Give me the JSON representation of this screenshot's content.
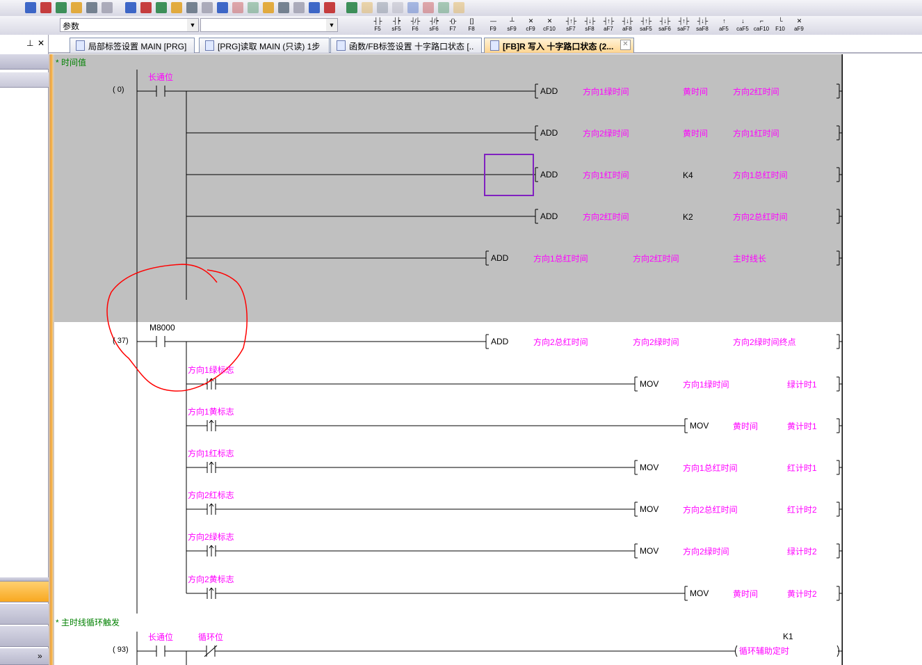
{
  "toolbar": {
    "row1_icons": [
      "dropdown-icon",
      "cut-icon",
      "copy-icon",
      "paste-icon",
      "undo-icon",
      "redo-icon",
      "device-batch-icon",
      "device-comment-icon",
      "device-hex-icon",
      "write-plc-icon",
      "read-plc-icon",
      "monitor-start-icon",
      "monitor-stop-icon",
      "monitor-disabled-icon",
      "monitor-disabled-icon",
      "device-search-icon",
      "device-write-icon",
      "step-read-icon",
      "step-write-icon",
      "step-verify-icon",
      "online-icon",
      "ladder-icon",
      "ladder-icon",
      "ladder-icon",
      "ladder-icon",
      "ladder-icon",
      "ladder-icon",
      "ladder-icon"
    ],
    "search_combo_value": "参数",
    "second_combo_value": "",
    "function_keys": [
      {
        "glyph": "┤├",
        "key": "F5"
      },
      {
        "glyph": "┤┝",
        "key": "sF5"
      },
      {
        "glyph": "┤/├",
        "key": "F6"
      },
      {
        "glyph": "┤/┝",
        "key": "sF6"
      },
      {
        "glyph": "-( )-",
        "key": "F7"
      },
      {
        "glyph": "[ ]",
        "key": "F8"
      },
      {
        "glyph": "—",
        "key": "F9"
      },
      {
        "glyph": "┴",
        "key": "sF9"
      },
      {
        "glyph": "✕",
        "key": "cF9"
      },
      {
        "glyph": "✕",
        "key": "cF10"
      },
      {
        "glyph": "┤↑├",
        "key": "sF7"
      },
      {
        "glyph": "┤↓├",
        "key": "sF8"
      },
      {
        "glyph": "┤↑├",
        "key": "aF7"
      },
      {
        "glyph": "┤↓├",
        "key": "aF8"
      },
      {
        "glyph": "┤↑├",
        "key": "saF5"
      },
      {
        "glyph": "┤↓├",
        "key": "saF6"
      },
      {
        "glyph": "┤↑├",
        "key": "saF7"
      },
      {
        "glyph": "┤↓├",
        "key": "saF8"
      },
      {
        "glyph": "↑",
        "key": "aF5"
      },
      {
        "glyph": "↓",
        "key": "caF5"
      },
      {
        "glyph": "⌐",
        "key": "caF10"
      },
      {
        "glyph": "└",
        "key": "F10"
      },
      {
        "glyph": "✕",
        "key": "aF9"
      }
    ]
  },
  "left_panel": {
    "pin": "⊥",
    "close": "✕",
    "more": "»"
  },
  "tabs": [
    {
      "label": "局部标签设置 MAIN [PRG]",
      "active": false
    },
    {
      "label": "[PRG]读取 MAIN (只读) 1步",
      "active": false
    },
    {
      "label": "函数/FB标签设置 十字路口状态 [..",
      "active": false
    },
    {
      "label": "[FB]R 写入 十字路口状态 (2...",
      "active": true
    }
  ],
  "tab_close": "✕",
  "ladder": {
    "comment1": "* 时间值",
    "rung0": {
      "step": "(    0)",
      "contact": "长通位",
      "rows": [
        {
          "ins": "ADD",
          "ops": [
            "方向1绿时间",
            "黄时间",
            "方向2红时间"
          ]
        },
        {
          "ins": "ADD",
          "ops": [
            "方向2绿时间",
            "黄时间",
            "方向1红时间"
          ]
        },
        {
          "ins": "ADD",
          "ops": [
            "方向1红时间",
            "K4",
            "方向1总红时间"
          ]
        },
        {
          "ins": "ADD",
          "ops": [
            "方向2红时间",
            "K2",
            "方向2总红时间"
          ]
        },
        {
          "ins": "ADD",
          "ops": [
            "方向1总红时间",
            "方向2红时间",
            "主时线长"
          ]
        }
      ]
    },
    "rung37": {
      "step": "(   37)",
      "contact": "M8000",
      "main": {
        "ins": "ADD",
        "ops": [
          "方向2总红时间",
          "方向2绿时间",
          "方向2绿时间终点"
        ]
      },
      "rows": [
        {
          "contact": "方向1绿标志",
          "ins": "MOV",
          "ops": [
            "方向1绿时间",
            "绿计时1"
          ]
        },
        {
          "contact": "方向1黄标志",
          "ins": "MOV",
          "ops": [
            "黄时间",
            "黄计时1"
          ]
        },
        {
          "contact": "方向1红标志",
          "ins": "MOV",
          "ops": [
            "方向1总红时间",
            "红计时1"
          ]
        },
        {
          "contact": "方向2红标志",
          "ins": "MOV",
          "ops": [
            "方向2总红时间",
            "红计时2"
          ]
        },
        {
          "contact": "方向2绿标志",
          "ins": "MOV",
          "ops": [
            "方向2绿时间",
            "绿计时2"
          ]
        },
        {
          "contact": "方向2黄标志",
          "ins": "MOV",
          "ops": [
            "黄时间",
            "黄计时2"
          ]
        }
      ]
    },
    "comment2": "* 主时线循环触发",
    "rung93": {
      "step": "(   93)",
      "contact1": "长通位",
      "contact2": "循环位",
      "coil": "循环辅助定时",
      "setting": "K1"
    }
  },
  "colors": {
    "label": "#ff00ff",
    "comment": "#008000",
    "selection_bg": "#c0c0c0",
    "cursor": "#8020c0",
    "annotation": "#ff0000"
  }
}
